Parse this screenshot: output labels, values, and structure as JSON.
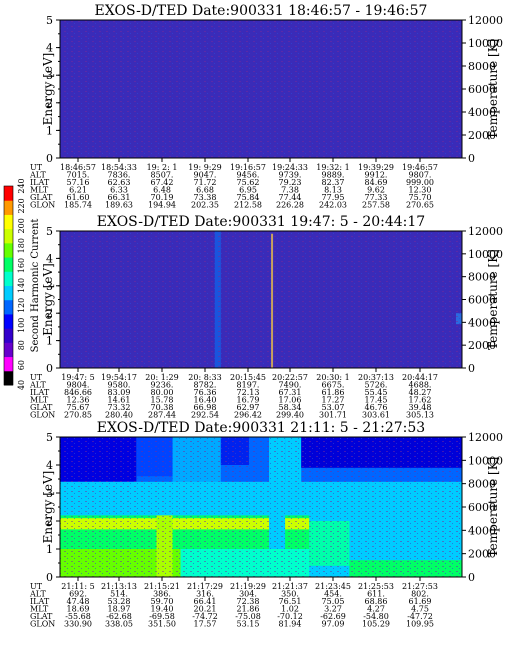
{
  "colorbar": {
    "label": "Second Harmonic Current",
    "ticks": [
      "40",
      "60",
      "80",
      "100",
      "120",
      "140",
      "160",
      "180",
      "200",
      "220",
      "240"
    ],
    "colors": [
      "#000000",
      "#ff00ff",
      "#6600cc",
      "#3300cc",
      "#0000ff",
      "#0066ff",
      "#00ccff",
      "#00ffcc",
      "#00ff66",
      "#66ff00",
      "#ccff00",
      "#ffff00",
      "#ff9900",
      "#ff0000"
    ]
  },
  "chart_data": [
    {
      "type": "heatmap",
      "title": "EXOS-D/TED   Date:900331   18:46:57 - 19:46:57",
      "ylabel": "Energy [eV]",
      "y2label": "Temperature [K]",
      "ylim": [
        0,
        5
      ],
      "yticks": [
        "0",
        "1",
        "2",
        "3",
        "4",
        "5"
      ],
      "y2lim": [
        0,
        12000
      ],
      "y2ticks": [
        "0",
        "2000",
        "4000",
        "6000",
        "8000",
        "10000",
        "12000"
      ],
      "background": "#3a2bb8",
      "features": [],
      "ephemeris": {
        "row_labels": [
          "UT",
          "ALT",
          "ILAT",
          "MLT",
          "GLAT",
          "GLON"
        ],
        "columns": [
          [
            "18:46:57",
            "7015.",
            "57.16",
            "6.21",
            "61.60",
            "185.74"
          ],
          [
            "18:54:33",
            "7836.",
            "62.63",
            "6.33",
            "66.31",
            "189.63"
          ],
          [
            "19: 2: 1",
            "8507.",
            "67.42",
            "6.48",
            "70.19",
            "194.94"
          ],
          [
            "19: 9:29",
            "9047.",
            "71.72",
            "6.68",
            "73.38",
            "202.35"
          ],
          [
            "19:16:57",
            "9456.",
            "75.62",
            "6.95",
            "75.84",
            "212.58"
          ],
          [
            "19:24:33",
            "9739.",
            "79.23",
            "7.38",
            "77.44",
            "226.28"
          ],
          [
            "19:32: 1",
            "9889.",
            "82.37",
            "8.13",
            "77.95",
            "242.03"
          ],
          [
            "19:39:29",
            "9912.",
            "84.69",
            "9.62",
            "77.33",
            "257.58"
          ],
          [
            "19:46:57",
            "9807.",
            "999.00",
            "12.30",
            "75.70",
            "270.65"
          ]
        ]
      }
    },
    {
      "type": "heatmap",
      "title": "EXOS-D/TED   Date:900331   19:47: 5 - 20:44:17",
      "ylabel": "Energy [eV]",
      "y2label": "Temperature [K]",
      "ylim": [
        0,
        5
      ],
      "yticks": [
        "0",
        "1",
        "2",
        "3",
        "4",
        "5"
      ],
      "y2lim": [
        0,
        12000
      ],
      "y2ticks": [
        "0",
        "2000",
        "4000",
        "6000",
        "8000",
        "10000",
        "12000"
      ],
      "background": "#3a2bb8",
      "features": [
        {
          "x0": 0.385,
          "x1": 0.4,
          "y0": 0,
          "y1": 5,
          "color": "#1a55dd"
        },
        {
          "x0": 0.525,
          "x1": 0.53,
          "y0": 0,
          "y1": 4.9,
          "color": "#c8a060"
        },
        {
          "x0": 0.985,
          "x1": 1.0,
          "y0": 1.6,
          "y1": 2.0,
          "color": "#2a6ae0"
        }
      ],
      "ephemeris": {
        "row_labels": [
          "UT",
          "ALT",
          "ILAT",
          "MLT",
          "GLAT",
          "GLON"
        ],
        "columns": [
          [
            "19:47: 5",
            "9804.",
            "846.66",
            "12.36",
            "75.67",
            "270.85"
          ],
          [
            "19:54:17",
            "9580.",
            "83.09",
            "14.61",
            "73.32",
            "280.40"
          ],
          [
            "20: 1:29",
            "9236.",
            "80.00",
            "15.78",
            "70.38",
            "287.44"
          ],
          [
            "20: 8:33",
            "8782.",
            "76.36",
            "16.40",
            "66.98",
            "292.54"
          ],
          [
            "20:15:45",
            "8197.",
            "72.13",
            "16.79",
            "62.97",
            "296.42"
          ],
          [
            "20:22:57",
            "7490.",
            "67.31",
            "17.06",
            "58.34",
            "299.40"
          ],
          [
            "20:30: 1",
            "6675.",
            "61.86",
            "17.27",
            "53.07",
            "301.71"
          ],
          [
            "20:37:13",
            "5726.",
            "55.45",
            "17.45",
            "46.76",
            "303.61"
          ],
          [
            "20:44:17",
            "4688.",
            "48.27",
            "17.62",
            "39.48",
            "305.13"
          ]
        ]
      }
    },
    {
      "type": "heatmap",
      "title": "EXOS-D/TED   Date:900331   21:11: 5 - 21:27:53",
      "ylabel": "Energy [eV]",
      "y2label": "Temperature [K]",
      "ylim": [
        0,
        5
      ],
      "yticks": [
        "0",
        "1",
        "2",
        "3",
        "4",
        "5"
      ],
      "y2lim": [
        0,
        12000
      ],
      "y2ticks": [
        "0",
        "2000",
        "4000",
        "6000",
        "8000",
        "10000",
        "12000"
      ],
      "background": "#0066ff",
      "features": [
        {
          "x0": 0.0,
          "x1": 0.19,
          "y0": 3.4,
          "y1": 5.0,
          "color": "#0000e0"
        },
        {
          "x0": 0.19,
          "x1": 0.28,
          "y0": 3.6,
          "y1": 5.0,
          "color": "#0044ff"
        },
        {
          "x0": 0.28,
          "x1": 0.4,
          "y0": 0.0,
          "y1": 5.0,
          "color": "#00aaff"
        },
        {
          "x0": 0.4,
          "x1": 0.47,
          "y0": 4.0,
          "y1": 5.0,
          "color": "#0022ee"
        },
        {
          "x0": 0.56,
          "x1": 0.6,
          "y0": 1.5,
          "y1": 5.0,
          "color": "#00ccff"
        },
        {
          "x0": 0.6,
          "x1": 1.0,
          "y0": 3.9,
          "y1": 5.0,
          "color": "#0000d8"
        },
        {
          "x0": 0.0,
          "x1": 1.0,
          "y0": 0.0,
          "y1": 3.4,
          "color": "#00ccff"
        },
        {
          "x0": 0.0,
          "x1": 0.62,
          "y0": 1.0,
          "y1": 2.2,
          "color": "#00ff66"
        },
        {
          "x0": 0.0,
          "x1": 0.3,
          "y0": 0.0,
          "y1": 1.0,
          "color": "#66ff00"
        },
        {
          "x0": 0.0,
          "x1": 0.62,
          "y0": 1.7,
          "y1": 2.1,
          "color": "#ccff00"
        },
        {
          "x0": 0.3,
          "x1": 0.62,
          "y0": 0.0,
          "y1": 1.0,
          "color": "#00ffcc"
        },
        {
          "x0": 0.62,
          "x1": 0.72,
          "y0": 0.4,
          "y1": 2.0,
          "color": "#00ffaa"
        },
        {
          "x0": 0.72,
          "x1": 1.0,
          "y0": 0.0,
          "y1": 0.6,
          "color": "#00ff66"
        },
        {
          "x0": 0.52,
          "x1": 0.56,
          "y0": 1.0,
          "y1": 5.0,
          "color": "#00ccff"
        },
        {
          "x0": 0.24,
          "x1": 0.28,
          "y0": 0.0,
          "y1": 2.2,
          "color": "#aaff00"
        }
      ],
      "ephemeris": {
        "row_labels": [
          "UT",
          "ALT",
          "ILAT",
          "MLT",
          "GLAT",
          "GLON"
        ],
        "columns": [
          [
            "21:11: 5",
            "692.",
            "47.48",
            "18.69",
            "-55.68",
            "330.90"
          ],
          [
            "21:13:13",
            "514.",
            "53.28",
            "18.97",
            "-62.68",
            "338.05"
          ],
          [
            "21:15:21",
            "386.",
            "59.70",
            "19.40",
            "-69.58",
            "351.50"
          ],
          [
            "21:17:29",
            "316.",
            "66.41",
            "20.21",
            "-74.72",
            "17.57"
          ],
          [
            "21:19:29",
            "304.",
            "72.38",
            "21.86",
            "-75.08",
            "53.15"
          ],
          [
            "21:21:37",
            "350.",
            "76.51",
            "1.02",
            "-70.12",
            "81.94"
          ],
          [
            "21:23:45",
            "454.",
            "75.05",
            "3.27",
            "-62.69",
            "97.09"
          ],
          [
            "21:25:53",
            "611.",
            "68.86",
            "4.27",
            "-54.80",
            "105.29"
          ],
          [
            "21:27:53",
            "802.",
            "61.69",
            "4.75",
            "-47.72",
            "109.95"
          ]
        ]
      }
    }
  ]
}
